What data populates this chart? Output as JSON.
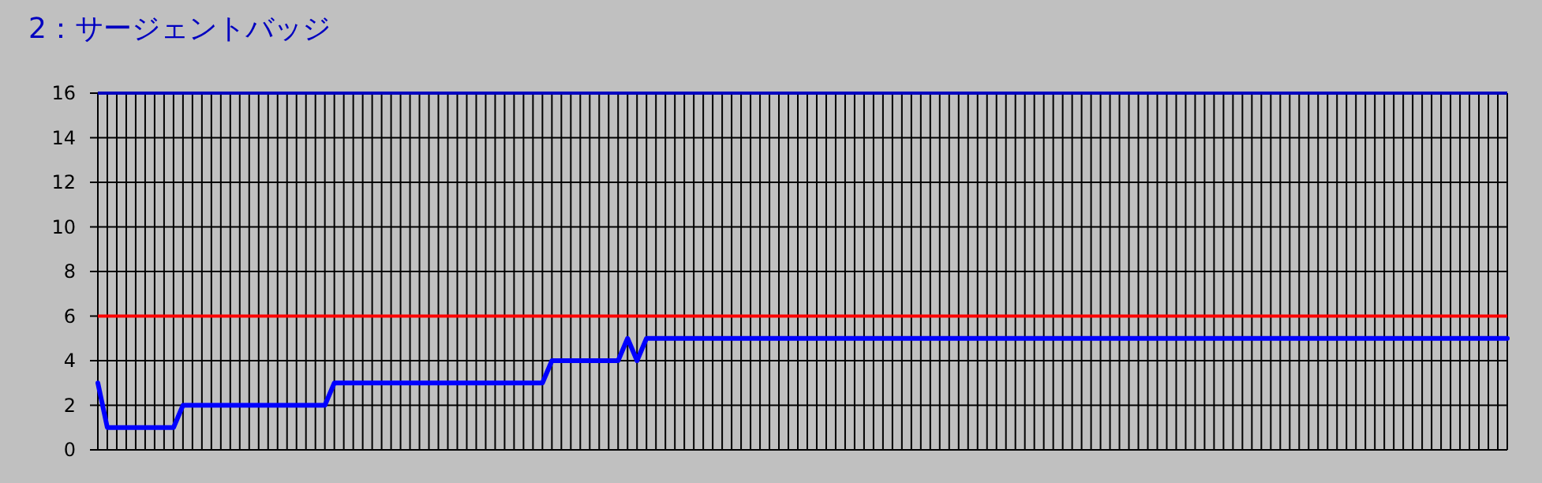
{
  "chart_data": {
    "type": "line",
    "title": "2：サージェントバッジ",
    "categories": [
      null,
      null,
      null,
      null,
      null,
      null,
      null,
      null,
      null,
      null,
      null,
      null,
      null,
      null,
      null,
      null,
      null,
      null,
      null,
      null,
      null,
      null,
      null,
      null,
      null,
      null,
      null,
      null,
      null,
      null,
      null,
      null,
      null,
      null,
      null,
      null,
      null,
      null,
      null,
      null,
      null,
      null,
      null,
      null,
      null,
      null,
      null,
      null,
      null,
      null,
      null,
      null,
      null,
      null,
      null,
      null,
      null,
      null,
      null,
      null,
      null,
      null,
      null,
      null,
      null,
      null,
      null,
      null,
      null,
      null,
      null,
      null,
      null,
      null,
      null,
      null,
      null,
      null,
      null,
      null,
      null,
      null,
      null,
      null,
      null,
      null,
      null,
      null,
      null,
      null,
      null,
      null,
      null,
      null,
      null,
      null,
      null,
      null,
      null,
      null,
      null,
      null,
      null,
      null,
      null,
      null,
      null,
      null,
      null,
      null,
      null,
      null,
      null,
      null,
      null,
      null,
      null,
      null,
      null,
      null,
      null,
      null,
      null,
      null,
      null,
      null,
      null,
      null,
      null,
      null,
      null,
      null,
      null,
      null,
      null,
      null,
      null,
      null,
      null,
      null,
      null,
      null,
      null,
      null,
      null,
      null,
      null,
      null,
      null,
      null
    ],
    "series": [
      {
        "color": "#0000ff",
        "values": [
          3,
          1,
          1,
          1,
          1,
          1,
          1,
          1,
          1,
          2,
          2,
          2,
          2,
          2,
          2,
          2,
          2,
          2,
          2,
          2,
          2,
          2,
          2,
          2,
          2,
          3,
          3,
          3,
          3,
          3,
          3,
          3,
          3,
          3,
          3,
          3,
          3,
          3,
          3,
          3,
          3,
          3,
          3,
          3,
          3,
          3,
          3,
          3,
          4,
          4,
          4,
          4,
          4,
          4,
          4,
          4,
          5,
          4,
          5,
          5,
          5,
          5,
          5,
          5,
          5,
          5,
          5,
          5,
          5,
          5,
          5,
          5,
          5,
          5,
          5,
          5,
          5,
          5,
          5,
          5,
          5,
          5,
          5,
          5,
          5,
          5,
          5,
          5,
          5,
          5,
          5,
          5,
          5,
          5,
          5,
          5,
          5,
          5,
          5,
          5,
          5,
          5,
          5,
          5,
          5,
          5,
          5,
          5,
          5,
          5,
          5,
          5,
          5,
          5,
          5,
          5,
          5,
          5,
          5,
          5,
          5,
          5,
          5,
          5,
          5,
          5,
          5,
          5,
          5,
          5,
          5,
          5,
          5,
          5,
          5,
          5,
          5,
          5,
          5,
          5,
          5,
          5,
          5,
          5,
          5,
          5,
          5,
          5,
          5,
          5
        ]
      }
    ],
    "ylim": [
      0,
      16
    ],
    "yticks": [
      0,
      2,
      4,
      6,
      8,
      10,
      12,
      14,
      16
    ],
    "grid": true,
    "tick_labels": "y",
    "ref_lines": [
      {
        "axis": "y",
        "value": 6,
        "color": "#ff0000"
      },
      {
        "axis": "y",
        "value": 16,
        "color": "#0000c0"
      }
    ]
  }
}
